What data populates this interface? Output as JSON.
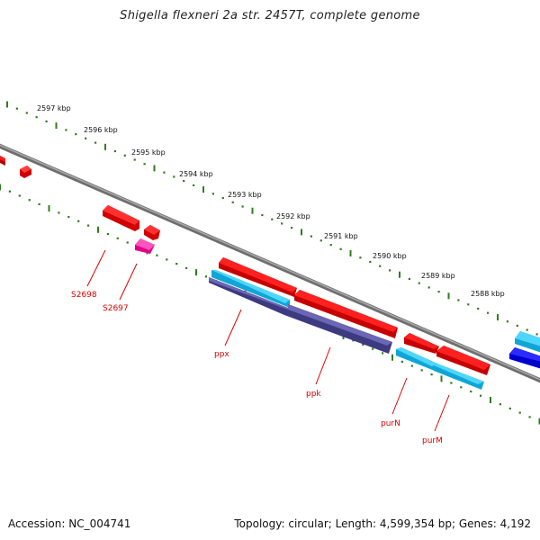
{
  "title": "Shigella flexneri 2a str. 2457T, complete genome",
  "footer": {
    "accession": "Accession: NC_004741",
    "summary": "Topology: circular; Length: 4,599,354 bp; Genes: 4,192"
  },
  "scale_labels": [
    "2597 kbp",
    "2596 kbp",
    "2595 kbp",
    "2594 kbp",
    "2593 kbp",
    "2592 kbp",
    "2591 kbp",
    "2590 kbp",
    "2589 kbp",
    "2588 kbp"
  ],
  "gene_labels": [
    "S2698",
    "S2697",
    "ppx",
    "ppk",
    "purN",
    "purM"
  ],
  "colors": {
    "backbone": "#8a8a8a",
    "tick": "#2e7d1e",
    "cds": "#ff0000",
    "gene_light_blue": "#29c6f0",
    "gene_dark_blue": "#1a1aff",
    "gene_navy": "#4a4690",
    "gene_pink": "#ff33aa",
    "label": "#dd0000"
  }
}
